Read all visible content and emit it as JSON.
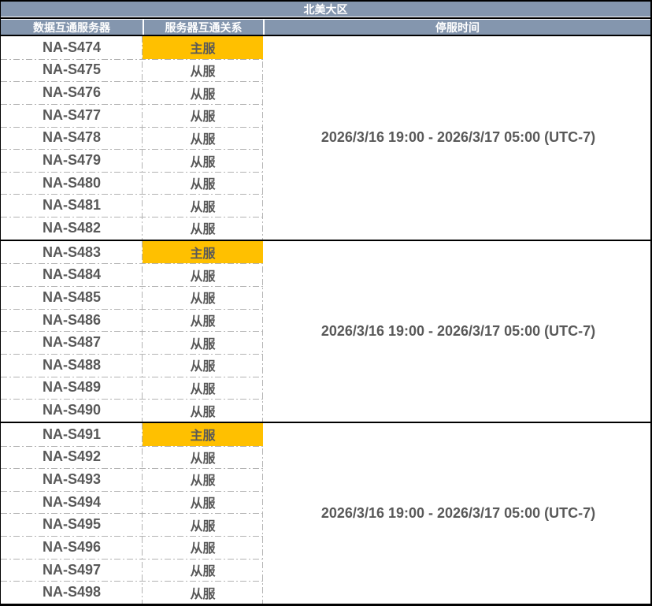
{
  "table": {
    "region_title": "北美大区",
    "columns": [
      "数据互通服务器",
      "服务器互通关系",
      "停服时间"
    ],
    "groups": [
      {
        "downtime": "2026/3/16 19:00 - 2026/3/17 05:00 (UTC-7)",
        "rows": [
          {
            "server": "NA-S474",
            "role": "主服",
            "is_main": true
          },
          {
            "server": "NA-S475",
            "role": "从服",
            "is_main": false
          },
          {
            "server": "NA-S476",
            "role": "从服",
            "is_main": false
          },
          {
            "server": "NA-S477",
            "role": "从服",
            "is_main": false
          },
          {
            "server": "NA-S478",
            "role": "从服",
            "is_main": false
          },
          {
            "server": "NA-S479",
            "role": "从服",
            "is_main": false
          },
          {
            "server": "NA-S480",
            "role": "从服",
            "is_main": false
          },
          {
            "server": "NA-S481",
            "role": "从服",
            "is_main": false
          },
          {
            "server": "NA-S482",
            "role": "从服",
            "is_main": false
          }
        ]
      },
      {
        "downtime": "2026/3/16 19:00 - 2026/3/17 05:00 (UTC-7)",
        "rows": [
          {
            "server": "NA-S483",
            "role": "主服",
            "is_main": true
          },
          {
            "server": "NA-S484",
            "role": "从服",
            "is_main": false
          },
          {
            "server": "NA-S485",
            "role": "从服",
            "is_main": false
          },
          {
            "server": "NA-S486",
            "role": "从服",
            "is_main": false
          },
          {
            "server": "NA-S487",
            "role": "从服",
            "is_main": false
          },
          {
            "server": "NA-S488",
            "role": "从服",
            "is_main": false
          },
          {
            "server": "NA-S489",
            "role": "从服",
            "is_main": false
          },
          {
            "server": "NA-S490",
            "role": "从服",
            "is_main": false
          }
        ]
      },
      {
        "downtime": "2026/3/16 19:00 - 2026/3/17 05:00 (UTC-7)",
        "rows": [
          {
            "server": "NA-S491",
            "role": "主服",
            "is_main": true
          },
          {
            "server": "NA-S492",
            "role": "从服",
            "is_main": false
          },
          {
            "server": "NA-S493",
            "role": "从服",
            "is_main": false
          },
          {
            "server": "NA-S494",
            "role": "从服",
            "is_main": false
          },
          {
            "server": "NA-S495",
            "role": "从服",
            "is_main": false
          },
          {
            "server": "NA-S496",
            "role": "从服",
            "is_main": false
          },
          {
            "server": "NA-S497",
            "role": "从服",
            "is_main": false
          },
          {
            "server": "NA-S498",
            "role": "从服",
            "is_main": false
          }
        ]
      }
    ]
  },
  "colors": {
    "header_bg": "#8496AE",
    "main_highlight": "#FFC000",
    "text_gray": "#595959",
    "divider_gray": "#B3B3B3",
    "border_black": "#000000"
  }
}
